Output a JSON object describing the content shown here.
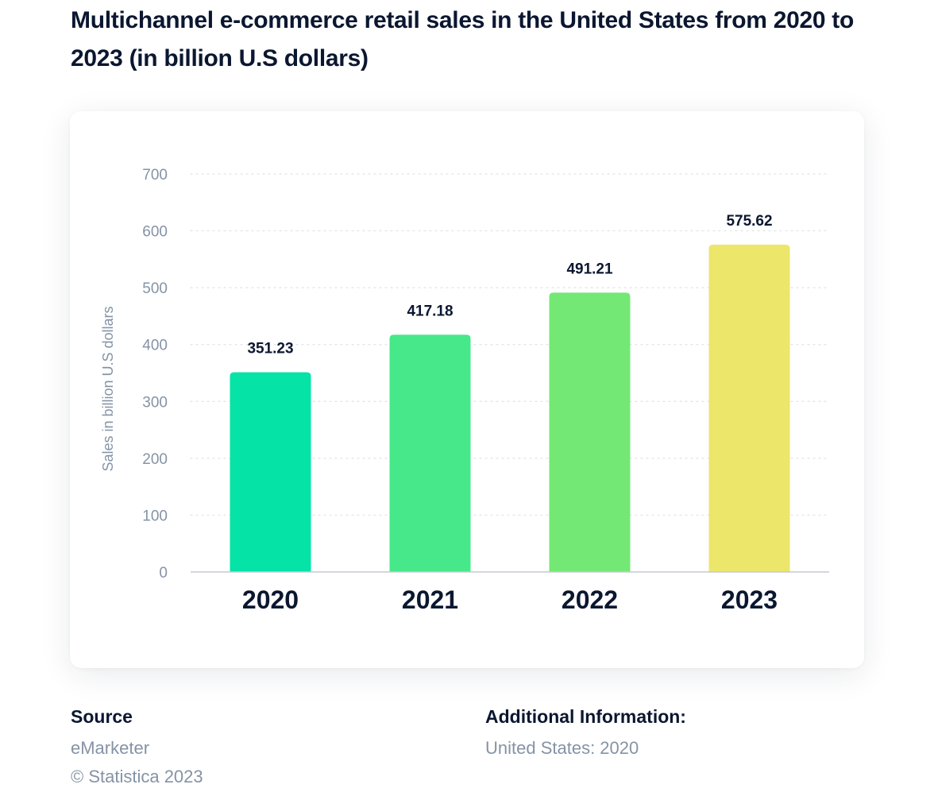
{
  "page": {
    "title": "Multichannel e-commerce retail sales in the United States from 2020 to 2023 (in billion U.S dollars)"
  },
  "chart_data": {
    "type": "bar",
    "title": "Multichannel e-commerce retail sales in the United States from 2020 to 2023 (in billion U.S dollars)",
    "categories": [
      "2020",
      "2021",
      "2022",
      "2023"
    ],
    "values": [
      351.23,
      417.18,
      491.21,
      575.62
    ],
    "value_labels": [
      "351.23",
      "417.18",
      "491.21",
      "575.62"
    ],
    "bar_colors": [
      "#06e3a6",
      "#46e88a",
      "#74e875",
      "#ece66a"
    ],
    "xlabel": "",
    "ylabel": "Sales in billion U.S dollars",
    "ylim": [
      0,
      700
    ],
    "yticks": [
      "0",
      "100",
      "200",
      "300",
      "400",
      "500",
      "600",
      "700"
    ],
    "grid": true,
    "grid_style": "dotted",
    "legend": "none"
  },
  "footer": {
    "source_heading": "Source",
    "source_name": "eMarketer",
    "copyright": "© Statistica 2023",
    "additional_heading": "Additional Information:",
    "additional_text": "United States: 2020"
  },
  "colors": {
    "title_text": "#0b1730",
    "muted_text": "#8593a6",
    "grid": "#dde3ea",
    "axis": "#c4cad2"
  }
}
